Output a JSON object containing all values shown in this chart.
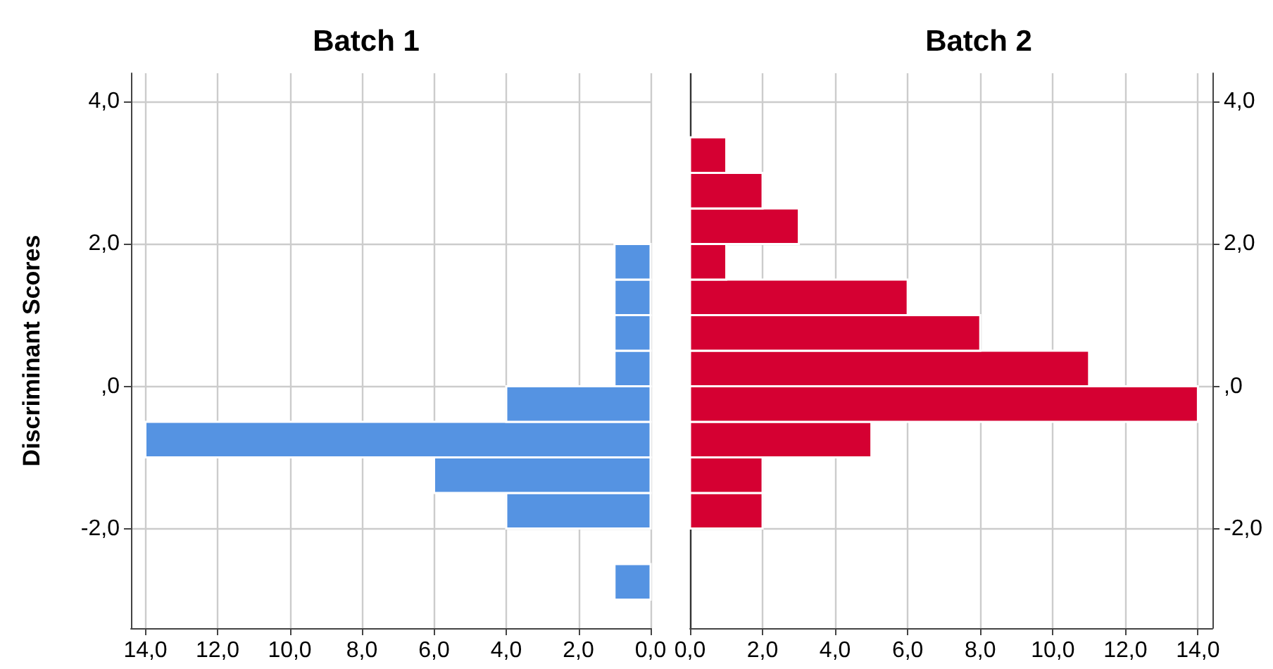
{
  "chart_data": [
    {
      "type": "histogram",
      "orientation": "horizontal",
      "title": "Batch 1",
      "ylabel": "Discriminant Scores",
      "bins": [
        -3.0,
        -2.5,
        -2.0,
        -1.5,
        -1.0,
        -0.5,
        0.0,
        0.5,
        1.0,
        1.5,
        2.0,
        2.5,
        3.0,
        3.5
      ],
      "series": [
        {
          "color": "#5593e2",
          "values": [
            1,
            0,
            4,
            6,
            14,
            4,
            1,
            1,
            1,
            1,
            0,
            0,
            0
          ]
        }
      ],
      "xlim": [
        14.4,
        0
      ],
      "xticks": [
        {
          "value": 0,
          "label": "0,0"
        },
        {
          "value": 2,
          "label": "2,0"
        },
        {
          "value": 4,
          "label": "4,0"
        },
        {
          "value": 6,
          "label": "6,0"
        },
        {
          "value": 8,
          "label": "8,0"
        },
        {
          "value": 10,
          "label": "10,0"
        },
        {
          "value": 12,
          "label": "12,0"
        },
        {
          "value": 14,
          "label": "14,0"
        }
      ],
      "ylim": [
        -3.4,
        4.4
      ],
      "yticks": [
        {
          "value": -2,
          "label": "-2,0"
        },
        {
          "value": 0,
          "label": ",0"
        },
        {
          "value": 2,
          "label": "2,0"
        },
        {
          "value": 4,
          "label": "4,0"
        }
      ],
      "grid": true
    },
    {
      "type": "histogram",
      "orientation": "horizontal",
      "title": "Batch 2",
      "bins": [
        -3.0,
        -2.5,
        -2.0,
        -1.5,
        -1.0,
        -0.5,
        0.0,
        0.5,
        1.0,
        1.5,
        2.0,
        2.5,
        3.0,
        3.5
      ],
      "series": [
        {
          "color": "#d50032",
          "values": [
            0,
            0,
            2,
            2,
            5,
            14,
            11,
            8,
            6,
            1,
            3,
            2,
            1
          ]
        }
      ],
      "xlim": [
        0,
        14.4
      ],
      "xticks": [
        {
          "value": 0,
          "label": "0,0"
        },
        {
          "value": 2,
          "label": "2,0"
        },
        {
          "value": 4,
          "label": "4,0"
        },
        {
          "value": 6,
          "label": "6,0"
        },
        {
          "value": 8,
          "label": "8,0"
        },
        {
          "value": 10,
          "label": "10,0"
        },
        {
          "value": 12,
          "label": "12,0"
        },
        {
          "value": 14,
          "label": "14,0"
        }
      ],
      "ylim": [
        -3.4,
        4.4
      ],
      "yticks": [
        {
          "value": -2,
          "label": "-2,0"
        },
        {
          "value": 0,
          "label": ",0"
        },
        {
          "value": 2,
          "label": "2,0"
        },
        {
          "value": 4,
          "label": "4,0"
        }
      ],
      "grid": true
    }
  ]
}
